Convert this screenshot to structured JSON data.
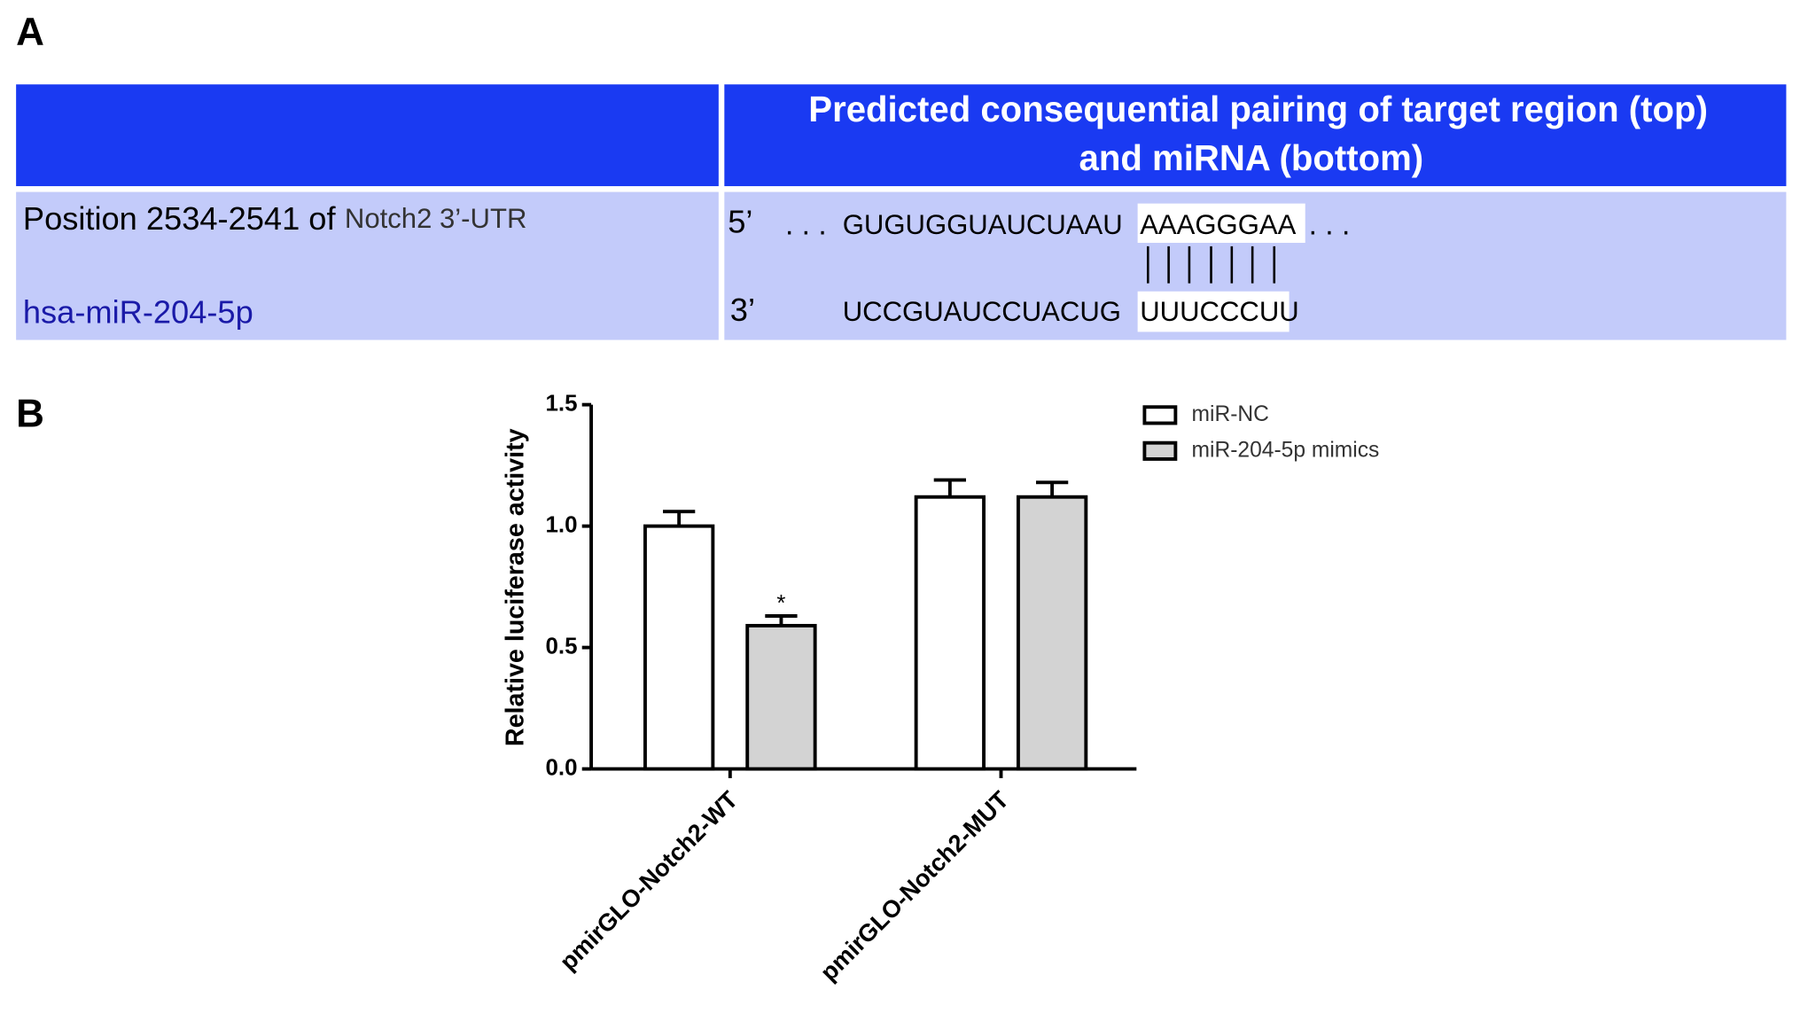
{
  "panel_a": {
    "label": "A",
    "header": {
      "lines": [
        "Predicted consequential pairing of target region (top)",
        "and miRNA (bottom)"
      ]
    },
    "rows": [
      {
        "name": "Position 2534-2541 of",
        "gene": "Notch2 3’-UTR",
        "end": "5’",
        "lead": ". . .",
        "sequence": "GUGUGGUAUCUAAU",
        "seed": "AAAGGGAA",
        "trail": ". . ."
      },
      {
        "name": "hsa-miR-204-5p",
        "end": "3’",
        "sequence": "UCCGUAUCCUACUG",
        "seed": "UUUCCCUU"
      }
    ]
  },
  "chart_data": {
    "type": "bar",
    "panel_label": "B",
    "ylabel": "Relative luciferase activity",
    "categories": [
      "pmirGLO-Notch2-WT",
      "pmirGLO-Notch2-MUT"
    ],
    "series": [
      {
        "name": "miR-NC",
        "color": "#ffffff",
        "values": [
          1.0,
          1.12
        ],
        "errors": [
          0.06,
          0.07
        ]
      },
      {
        "name": "miR-204-5p mimics",
        "color": "#d3d3d3",
        "values": [
          0.59,
          1.12
        ],
        "errors": [
          0.04,
          0.06
        ]
      }
    ],
    "annotations": [
      {
        "series": 1,
        "index": 0,
        "text": "*"
      }
    ],
    "ylim": [
      0,
      1.5
    ],
    "yticks": [
      {
        "value": 0,
        "label": "0.0"
      },
      0.5,
      {
        "value": 1,
        "label": "1.0"
      },
      1.5
    ],
    "legend": "top-right"
  }
}
